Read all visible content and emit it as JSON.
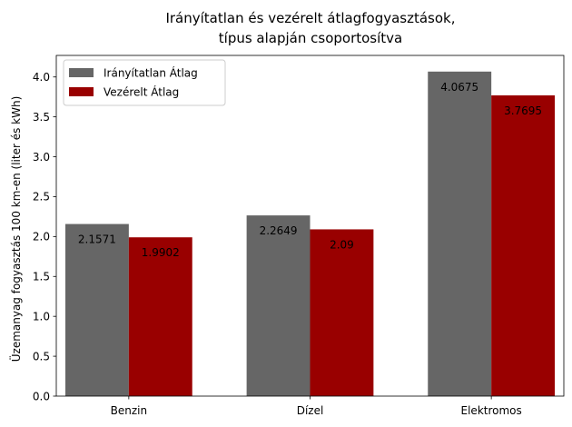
{
  "chart_data": {
    "type": "bar",
    "title_lines": [
      "Irányítatlan és vezérelt átlagfogyasztások,",
      "típus alapján csoportosítva"
    ],
    "xlabel": "",
    "ylabel": "Üzemanyag fogyasztás 100 km-en (liter és kWh)",
    "categories": [
      "Benzin",
      "Dízel",
      "Elektromos"
    ],
    "series": [
      {
        "name": "Irányítatlan Átlag",
        "color": "#666666",
        "values": [
          2.1571,
          2.2649,
          4.0675
        ],
        "labels": [
          "2.1571",
          "2.2649",
          "4.0675"
        ]
      },
      {
        "name": "Vezérelt Átlag",
        "color": "#990000",
        "values": [
          1.9902,
          2.09,
          3.7695
        ],
        "labels": [
          "1.9902",
          "2.09",
          "3.7695"
        ]
      }
    ],
    "ylim": [
      0,
      4.27
    ],
    "yticks": [
      "0.0",
      "0.5",
      "1.0",
      "1.5",
      "2.0",
      "2.5",
      "3.0",
      "3.5",
      "4.0"
    ],
    "grid": false,
    "legend_position": "top-left"
  }
}
